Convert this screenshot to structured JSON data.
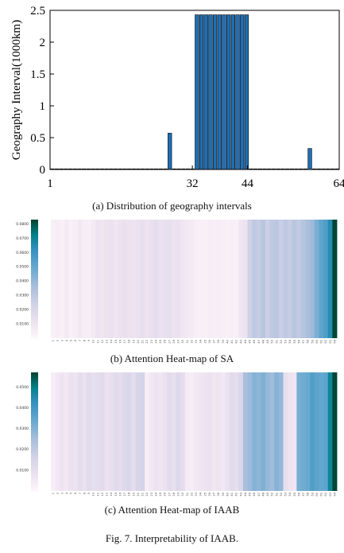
{
  "figure": {
    "caption": "Fig. 7.  Interpretability of IAAB."
  },
  "chart_data": [
    {
      "id": "a",
      "type": "bar",
      "caption": "(a) Distribution of geography intervals",
      "ylabel": "Geography Interval(1000km)",
      "xlim": [
        1,
        64
      ],
      "ylim": [
        0,
        2.5
      ],
      "yticks": [
        "0",
        "0.5",
        "1",
        "1.5",
        "2",
        "2.5"
      ],
      "xticks": [
        "1",
        "32",
        "44",
        "64"
      ],
      "bar_color": "#1f6fb4",
      "x": [
        1,
        2,
        3,
        4,
        5,
        6,
        7,
        8,
        9,
        10,
        11,
        12,
        13,
        14,
        15,
        16,
        17,
        18,
        19,
        20,
        21,
        22,
        23,
        24,
        25,
        26,
        27,
        28,
        29,
        30,
        31,
        32,
        33,
        34,
        35,
        36,
        37,
        38,
        39,
        40,
        41,
        42,
        43,
        44,
        45,
        46,
        47,
        48,
        49,
        50,
        51,
        52,
        53,
        54,
        55,
        56,
        57,
        58,
        59,
        60,
        61,
        62,
        63,
        64
      ],
      "values": [
        0,
        0,
        0,
        0,
        0,
        0,
        0,
        0,
        0,
        0,
        0,
        0,
        0,
        0,
        0,
        0,
        0,
        0,
        0,
        0,
        0,
        0,
        0,
        0,
        0,
        0,
        0.57,
        0,
        0,
        0,
        0,
        0,
        2.43,
        2.43,
        2.43,
        2.43,
        2.43,
        2.43,
        2.43,
        2.43,
        2.43,
        2.43,
        2.43,
        2.43,
        0,
        0,
        0,
        0,
        0,
        0,
        0,
        0,
        0,
        0,
        0,
        0,
        0,
        0.33,
        0,
        0,
        0,
        0,
        0,
        0
      ]
    },
    {
      "id": "b",
      "type": "heatmap",
      "caption": "(b) Attention Heat-map of SA",
      "colorbar_ticks": [
        "0.0800",
        "0.0700",
        "0.0600",
        "0.0500",
        "0.0400",
        "0.0300",
        "0.0200",
        "0.0100"
      ],
      "colorbar_range": [
        0,
        0.083
      ],
      "x_tick_labels": [
        "1",
        "2",
        "3",
        "4",
        "5",
        "6",
        "7",
        "8",
        "9",
        "10",
        "11",
        "12",
        "13",
        "14",
        "15",
        "16",
        "17",
        "18",
        "19",
        "20",
        "21",
        "22",
        "23",
        "24",
        "25",
        "26",
        "27",
        "28",
        "29",
        "30",
        "31",
        "32",
        "33",
        "34",
        "35",
        "36",
        "37",
        "38",
        "39",
        "40",
        "41",
        "42",
        "43",
        "44",
        "45",
        "46",
        "47",
        "48",
        "49",
        "50",
        "51",
        "52",
        "53",
        "54",
        "55",
        "56",
        "57",
        "58",
        "59",
        "60",
        "61",
        "62",
        "63",
        "64"
      ],
      "values": [
        0.004,
        0.006,
        0.004,
        0.008,
        0.004,
        0.006,
        0.009,
        0.006,
        0.005,
        0.008,
        0.011,
        0.01,
        0.012,
        0.013,
        0.01,
        0.012,
        0.014,
        0.012,
        0.011,
        0.013,
        0.015,
        0.012,
        0.014,
        0.016,
        0.013,
        0.014,
        0.015,
        0.012,
        0.013,
        0.01,
        0.009,
        0.008,
        0.005,
        0.004,
        0.004,
        0.006,
        0.005,
        0.006,
        0.005,
        0.004,
        0.005,
        0.004,
        0.01,
        0.012,
        0.025,
        0.03,
        0.028,
        0.032,
        0.026,
        0.03,
        0.031,
        0.027,
        0.03,
        0.028,
        0.032,
        0.029,
        0.033,
        0.036,
        0.039,
        0.046,
        0.052,
        0.056,
        0.065,
        0.083
      ]
    },
    {
      "id": "c",
      "type": "heatmap",
      "caption": "(c) Attention Heat-map of IAAB",
      "colorbar_ticks": [
        "0.0500",
        "0.0400",
        "0.0300",
        "0.0200",
        "0.0100"
      ],
      "colorbar_range": [
        0,
        0.057
      ],
      "x_tick_labels": [
        "1",
        "2",
        "3",
        "4",
        "5",
        "6",
        "7",
        "8",
        "9",
        "10",
        "11",
        "12",
        "13",
        "14",
        "15",
        "16",
        "17",
        "18",
        "19",
        "20",
        "21",
        "22",
        "23",
        "24",
        "25",
        "26",
        "27",
        "28",
        "29",
        "30",
        "31",
        "32",
        "33",
        "34",
        "35",
        "36",
        "37",
        "38",
        "39",
        "40",
        "41",
        "42",
        "43",
        "44",
        "45",
        "46",
        "47",
        "48",
        "49",
        "50",
        "51",
        "52",
        "53",
        "54",
        "55",
        "56",
        "57",
        "58",
        "59",
        "60",
        "61",
        "62",
        "63",
        "64"
      ],
      "values": [
        0.004,
        0.006,
        0.008,
        0.006,
        0.009,
        0.008,
        0.011,
        0.009,
        0.012,
        0.01,
        0.011,
        0.012,
        0.009,
        0.01,
        0.012,
        0.011,
        0.013,
        0.014,
        0.011,
        0.015,
        0.016,
        0.004,
        0.006,
        0.008,
        0.007,
        0.009,
        0.012,
        0.01,
        0.013,
        0.011,
        0.005,
        0.004,
        0.006,
        0.007,
        0.008,
        0.009,
        0.007,
        0.008,
        0.006,
        0.009,
        0.012,
        0.011,
        0.014,
        0.025,
        0.027,
        0.03,
        0.029,
        0.031,
        0.028,
        0.026,
        0.03,
        0.028,
        0.01,
        0.008,
        0.007,
        0.032,
        0.033,
        0.034,
        0.038,
        0.036,
        0.035,
        0.036,
        0.048,
        0.057
      ]
    }
  ]
}
